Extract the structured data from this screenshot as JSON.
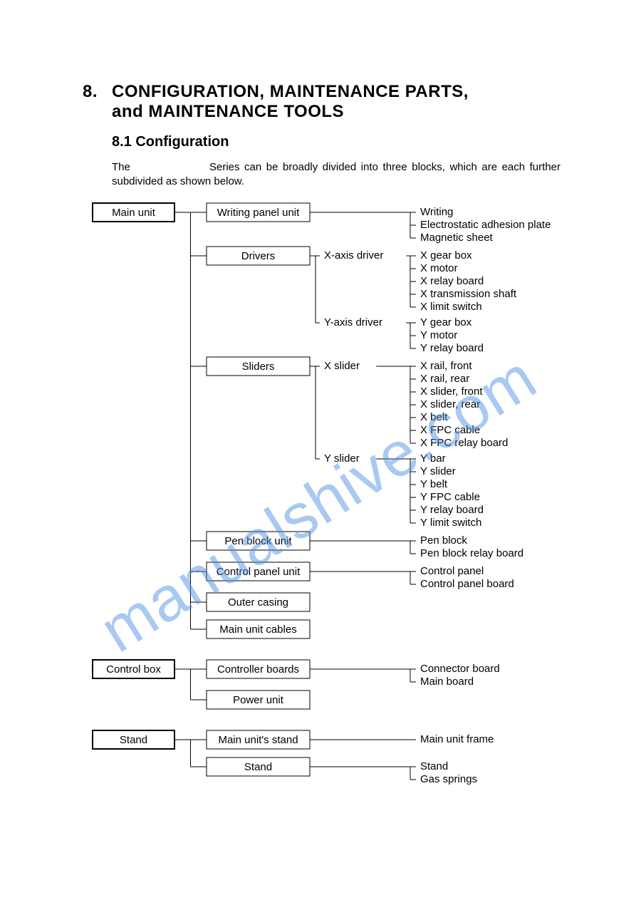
{
  "section_number": "8.",
  "section_title_line1": "CONFIGURATION, MAINTENANCE PARTS,",
  "section_title_line2": "and MAINTENANCE TOOLS",
  "subsection": "8.1 Configuration",
  "intro_text": "The                 Series can be broadly divided into three blocks, which are each further subdivided as shown below.",
  "watermark": "manualshive.com",
  "styling": {
    "font_family": "Arial, Helvetica, sans-serif",
    "h1_fontsize": 24,
    "h2_fontsize": 20,
    "body_fontsize": 15,
    "diagram_fontsize": 15,
    "line_color": "#000000",
    "text_color": "#000000",
    "background_color": "#ffffff",
    "watermark_color": "#4a90e2",
    "watermark_opacity": 0.48,
    "root_box_stroke": 2,
    "child_box_stroke": 1,
    "box_fill": "#ffffff"
  },
  "tree": {
    "roots": [
      {
        "label": "Main unit",
        "level2": [
          {
            "label": "Writing panel unit",
            "level3": [],
            "leaves": [
              "Writing",
              "Electrostatic adhesion plate",
              "Magnetic sheet"
            ]
          },
          {
            "label": "Drivers",
            "level3": [
              {
                "label": "X-axis driver",
                "leaves": [
                  "X gear box",
                  "X motor",
                  "X relay board",
                  "X transmission shaft",
                  "X limit switch"
                ]
              },
              {
                "label": "Y-axis driver",
                "leaves": [
                  "Y gear box",
                  "Y motor",
                  "Y relay board"
                ]
              }
            ],
            "leaves": []
          },
          {
            "label": "Sliders",
            "level3": [
              {
                "label": "X slider",
                "leaves": [
                  "X rail, front",
                  "X rail, rear",
                  "X slider, front",
                  "X slider, rear",
                  "X belt",
                  "X FPC cable",
                  "X FPC relay board"
                ]
              },
              {
                "label": "Y slider",
                "leaves": [
                  "Y bar",
                  "Y slider",
                  "Y belt",
                  "Y FPC cable",
                  "Y relay board",
                  "Y limit switch"
                ]
              }
            ],
            "leaves": []
          },
          {
            "label": "Pen block unit",
            "level3": [],
            "leaves": [
              "Pen block",
              "Pen block relay board"
            ]
          },
          {
            "label": "Control panel unit",
            "level3": [],
            "leaves": [
              "Control panel",
              "Control panel board"
            ]
          },
          {
            "label": "Outer casing",
            "level3": [],
            "leaves": []
          },
          {
            "label": "Main unit cables",
            "level3": [],
            "leaves": []
          }
        ]
      },
      {
        "label": "Control box",
        "level2": [
          {
            "label": "Controller boards",
            "level3": [],
            "leaves": [
              "Connector board",
              "Main board"
            ]
          },
          {
            "label": "Power unit",
            "level3": [],
            "leaves": []
          }
        ]
      },
      {
        "label": "Stand",
        "level2": [
          {
            "label": "Main unit's stand",
            "level3": [],
            "leaves": [
              "Main unit frame"
            ]
          },
          {
            "label": "Stand",
            "level3": [],
            "leaves": [
              "Stand",
              "Gas springs"
            ]
          }
        ]
      }
    ]
  }
}
